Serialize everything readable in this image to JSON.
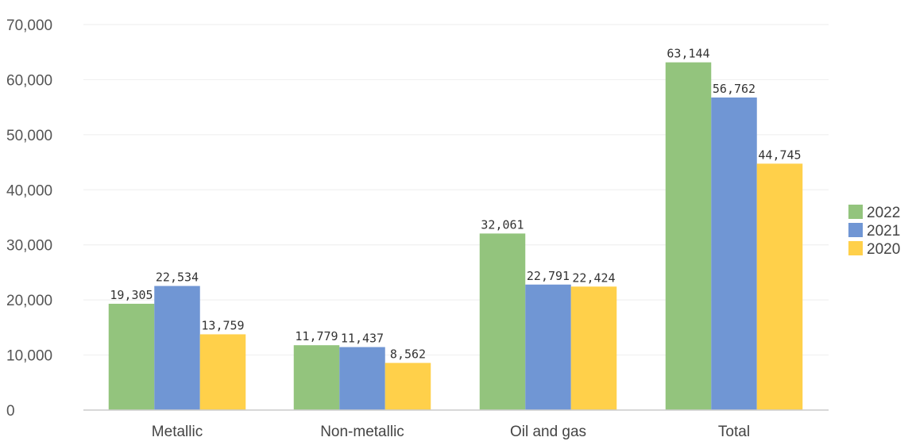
{
  "chart_data": {
    "type": "bar",
    "categories": [
      "Metallic",
      "Non-metallic",
      "Oil and gas",
      "Total"
    ],
    "series": [
      {
        "name": "2022",
        "color": "#93c47d",
        "values": [
          19305,
          11779,
          32061,
          63144
        ],
        "labels": [
          "19,305",
          "11,779",
          "32,061",
          "63,144"
        ]
      },
      {
        "name": "2021",
        "color": "#7096d4",
        "values": [
          22534,
          11437,
          22791,
          56762
        ],
        "labels": [
          "22,534",
          "11,437",
          "22,791",
          "56,762"
        ]
      },
      {
        "name": "2020",
        "color": "#ffd04a",
        "values": [
          13759,
          8562,
          22424,
          44745
        ],
        "labels": [
          "13,759",
          "8,562",
          "22,424",
          "44,745"
        ]
      }
    ],
    "ylim": [
      0,
      70000
    ],
    "yticks": [
      0,
      10000,
      20000,
      30000,
      40000,
      50000,
      60000,
      70000
    ],
    "ytick_labels": [
      "0",
      "10,000",
      "20,000",
      "30,000",
      "40,000",
      "50,000",
      "60,000",
      "70,000"
    ],
    "grid": true,
    "legend_position": "right"
  }
}
